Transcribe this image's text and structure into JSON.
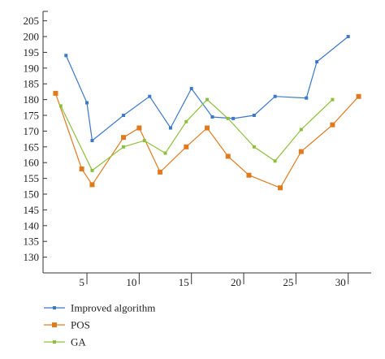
{
  "chart_data": {
    "type": "line",
    "title": "",
    "xlabel": "",
    "ylabel": "",
    "xlim": [
      0.8,
      32.2
    ],
    "ylim": [
      125,
      208
    ],
    "x_ticks": [
      5,
      10,
      15,
      20,
      25,
      30
    ],
    "y_ticks": [
      130,
      135,
      140,
      145,
      150,
      155,
      160,
      165,
      170,
      175,
      180,
      185,
      190,
      195,
      200,
      205
    ],
    "grid": false,
    "legend_position": "bottom-left",
    "series": [
      {
        "name": "Improved algorithm",
        "color": "#3c78c8",
        "marker": "square-small",
        "x": [
          3,
          5,
          5.5,
          8.5,
          11,
          13,
          15,
          17,
          19,
          21,
          23,
          26,
          27,
          30
        ],
        "y": [
          194,
          179,
          167,
          175,
          181,
          171,
          183.5,
          174.5,
          174,
          175,
          181,
          180.5,
          192,
          200
        ]
      },
      {
        "name": "POS",
        "color": "#e07a1f",
        "marker": "square-large",
        "x": [
          2,
          4.5,
          5.5,
          8.5,
          10,
          12,
          14.5,
          16.5,
          18.5,
          20.5,
          23.5,
          25.5,
          28.5,
          31
        ],
        "y": [
          182,
          158,
          153,
          168,
          171,
          157,
          165,
          171,
          162,
          156,
          152,
          163.5,
          172,
          181
        ]
      },
      {
        "name": "GA",
        "color": "#8cc03c",
        "marker": "square-small",
        "x": [
          2.5,
          5.5,
          8.5,
          10.5,
          12.5,
          14.5,
          16.5,
          18.5,
          21,
          23,
          25.5,
          28.5
        ],
        "y": [
          178,
          157.5,
          165,
          167,
          163,
          173,
          180,
          174,
          165,
          160.5,
          170.5,
          180
        ]
      }
    ]
  }
}
